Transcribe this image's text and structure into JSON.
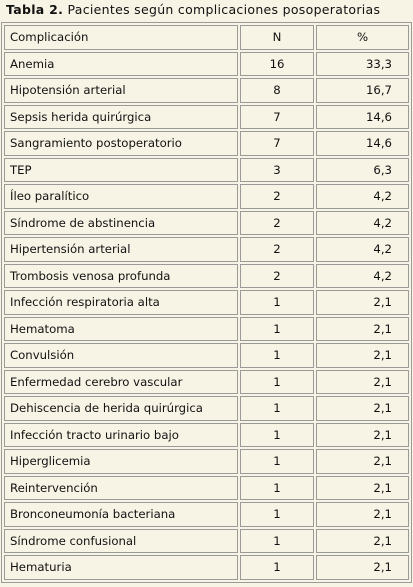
{
  "title": {
    "label": "Tabla 2.",
    "text": "Pacientes según complicaciones posoperatorias"
  },
  "table": {
    "header": [
      "Complicación",
      "N",
      "%"
    ],
    "rows": [
      [
        "Anemia",
        "16",
        "33,3"
      ],
      [
        "Hipotensión arterial",
        "8",
        "16,7"
      ],
      [
        "Sepsis herida quirúrgica",
        "7",
        "14,6"
      ],
      [
        "Sangramiento postoperatorio",
        "7",
        "14,6"
      ],
      [
        "TEP",
        "3",
        "6,3"
      ],
      [
        "Íleo paralítico",
        "2",
        "4,2"
      ],
      [
        "Síndrome de abstinencia",
        "2",
        "4,2"
      ],
      [
        "Hipertensión arterial",
        "2",
        "4,2"
      ],
      [
        "Trombosis venosa profunda",
        "2",
        "4,2"
      ],
      [
        "Infección respiratoria alta",
        "1",
        "2,1"
      ],
      [
        "Hematoma",
        "1",
        "2,1"
      ],
      [
        "Convulsión",
        "1",
        "2,1"
      ],
      [
        "Enfermedad cerebro vascular",
        "1",
        "2,1"
      ],
      [
        "Dehiscencia de herida quirúrgica",
        "1",
        "2,1"
      ],
      [
        "Infección tracto urinario bajo",
        "1",
        "2,1"
      ],
      [
        "Hiperglicemia",
        "1",
        "2,1"
      ],
      [
        "Reintervención",
        "1",
        "2,1"
      ],
      [
        "Bronconeumonía bacteriana",
        "1",
        "2,1"
      ],
      [
        "Síndrome confusional",
        "1",
        "2,1"
      ],
      [
        "Hematuria",
        "1",
        "2,1"
      ]
    ]
  }
}
